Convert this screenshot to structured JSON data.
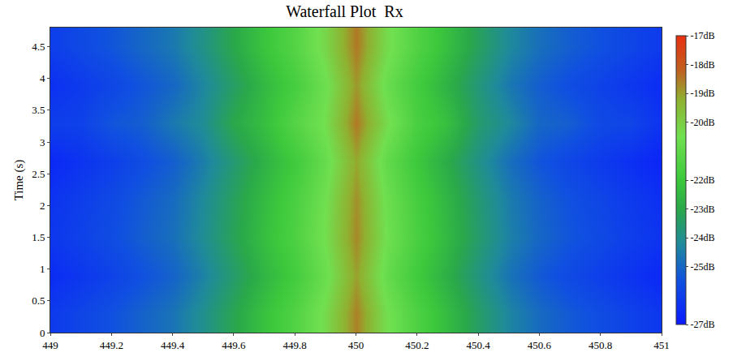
{
  "chart_data": {
    "type": "heatmap",
    "title": "Waterfall Plot  Rx",
    "y_label": "Time (s)",
    "x": [
      449.0,
      449.1,
      449.2,
      449.3,
      449.4,
      449.5,
      449.6,
      449.7,
      449.8,
      449.9,
      450.0,
      450.1,
      450.2,
      450.3,
      450.4,
      450.5,
      450.6,
      450.7,
      450.8,
      450.9,
      451.0
    ],
    "y": [
      0.3,
      0.9,
      1.5,
      2.1,
      2.7,
      3.3,
      3.9,
      4.5
    ],
    "z": [
      [
        -26.1,
        -25.8,
        -25.5,
        -25.1,
        -24.7,
        -24.0,
        -23.1,
        -22.2,
        -21.4,
        -20.3,
        -18.6,
        -20.4,
        -21.5,
        -22.4,
        -23.4,
        -24.3,
        -24.9,
        -25.3,
        -25.6,
        -25.9,
        -26.2
      ],
      [
        -26.5,
        -26.2,
        -25.9,
        -25.5,
        -25.1,
        -24.4,
        -23.5,
        -22.6,
        -21.8,
        -20.7,
        -19.0,
        -20.8,
        -21.9,
        -22.8,
        -23.8,
        -24.7,
        -25.3,
        -25.7,
        -26.0,
        -26.3,
        -26.6
      ],
      [
        -26.2,
        -25.9,
        -25.6,
        -25.2,
        -24.8,
        -24.1,
        -23.2,
        -22.3,
        -21.5,
        -20.4,
        -18.7,
        -20.5,
        -21.6,
        -22.5,
        -23.5,
        -24.4,
        -25.0,
        -25.4,
        -25.7,
        -26.0,
        -26.3
      ],
      [
        -26.3,
        -26.0,
        -25.7,
        -25.3,
        -24.9,
        -24.2,
        -23.3,
        -22.4,
        -21.6,
        -20.5,
        -18.8,
        -20.6,
        -21.7,
        -22.6,
        -23.6,
        -24.5,
        -25.1,
        -25.5,
        -25.8,
        -26.1,
        -26.4
      ],
      [
        -26.6,
        -26.3,
        -26.0,
        -25.6,
        -25.2,
        -24.5,
        -23.6,
        -22.7,
        -21.9,
        -20.8,
        -19.1,
        -20.9,
        -22.0,
        -22.9,
        -23.9,
        -24.8,
        -25.4,
        -25.8,
        -26.1,
        -26.4,
        -26.7
      ],
      [
        -26.0,
        -25.9,
        -25.4,
        -25.2,
        -24.6,
        -24.1,
        -23.0,
        -22.3,
        -21.3,
        -20.4,
        -18.5,
        -20.3,
        -21.6,
        -22.3,
        -23.5,
        -24.2,
        -25.0,
        -25.2,
        -25.7,
        -25.8,
        -26.3
      ],
      [
        -26.4,
        -26.1,
        -25.8,
        -25.4,
        -25.0,
        -24.3,
        -23.4,
        -22.5,
        -21.7,
        -20.6,
        -18.9,
        -20.7,
        -21.8,
        -22.7,
        -23.7,
        -24.6,
        -25.2,
        -25.6,
        -25.9,
        -26.2,
        -26.5
      ],
      [
        -26.0,
        -25.7,
        -25.4,
        -25.0,
        -24.6,
        -23.9,
        -23.0,
        -22.1,
        -21.3,
        -20.2,
        -18.5,
        -20.3,
        -21.4,
        -22.3,
        -23.3,
        -24.2,
        -24.8,
        -25.2,
        -25.5,
        -25.8,
        -26.1
      ]
    ],
    "xlim": [
      449,
      451
    ],
    "xticks": [
      449,
      449.2,
      449.4,
      449.6,
      449.8,
      450,
      450.2,
      450.4,
      450.6,
      450.8,
      451
    ],
    "ylim": [
      0,
      4.8
    ],
    "yticks": [
      0,
      0.5,
      1,
      1.5,
      2,
      2.5,
      3,
      3.5,
      4,
      4.5
    ],
    "colorbar_range": [
      -27,
      -17
    ],
    "colorbar_ticks": [
      {
        "value": -17,
        "label": "-17dB"
      },
      {
        "value": -18,
        "label": "-18dB"
      },
      {
        "value": -19,
        "label": "-19dB"
      },
      {
        "value": -20,
        "label": "-20dB"
      },
      {
        "value": -22,
        "label": "-22dB"
      },
      {
        "value": -23,
        "label": "-23dB"
      },
      {
        "value": -24,
        "label": "-24dB"
      },
      {
        "value": -25,
        "label": "-25dB"
      },
      {
        "value": -27,
        "label": "-27dB"
      }
    ],
    "grid": false
  }
}
